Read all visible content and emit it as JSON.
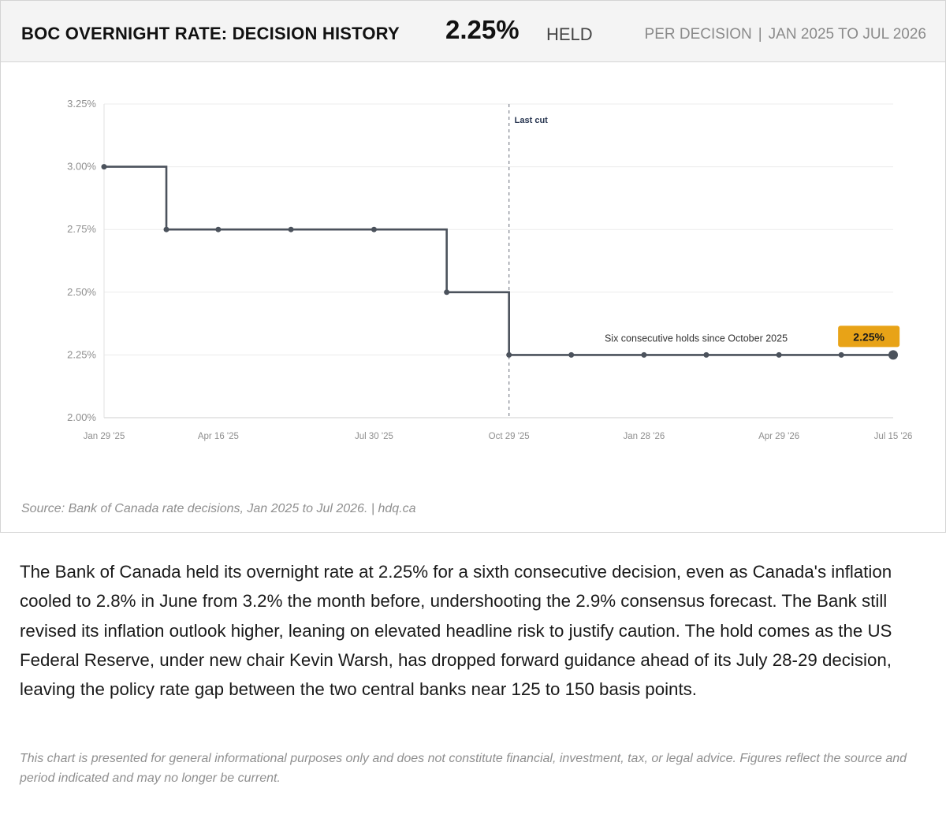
{
  "header": {
    "title": "BOC OVERNIGHT RATE: DECISION HISTORY",
    "value": "2.25%",
    "status": "HELD",
    "frequency": "PER DECISION",
    "period": "JAN 2025 TO JUL 2026"
  },
  "chart_data": {
    "type": "line",
    "step": true,
    "x": [
      "2025-01-29",
      "2025-03-12",
      "2025-04-16",
      "2025-06-04",
      "2025-07-30",
      "2025-09-17",
      "2025-10-29",
      "2025-12-10",
      "2026-01-28",
      "2026-03-11",
      "2026-04-29",
      "2026-06-10",
      "2026-07-15"
    ],
    "series": [
      {
        "values": [
          3.0,
          2.75,
          2.75,
          2.75,
          2.75,
          2.5,
          2.25,
          2.25,
          2.25,
          2.25,
          2.25,
          2.25,
          2.25
        ]
      }
    ],
    "y_ticks": [
      "3.25%",
      "3.00%",
      "2.75%",
      "2.50%",
      "2.25%",
      "2.00%"
    ],
    "x_ticks": [
      "Jan 29 '25",
      "Apr 16 '25",
      "Jul 30 '25",
      "Oct 29 '25",
      "Jan 28 '26",
      "Apr 29 '26",
      "Jul 15 '26"
    ],
    "ylim": [
      2.0,
      3.25
    ],
    "grid": true,
    "annotations": {
      "vline_label": "Last cut",
      "vline_at": "2025-10-29",
      "hold_note": "Six consecutive holds since October 2025",
      "end_label": "2.25%"
    },
    "colors": {
      "line": "#4b525c",
      "grid": "#ececec",
      "badge": "#e8a317",
      "vline": "#8a8f99"
    }
  },
  "source": "Source: Bank of Canada rate decisions, Jan 2025 to Jul 2026.  |  hdq.ca",
  "summary": "The Bank of Canada held its overnight rate at 2.25% for a sixth consecutive decision, even as Canada's inflation cooled to 2.8% in June from 3.2% the month before, undershooting the 2.9% consensus forecast. The Bank still revised its inflation outlook higher, leaning on elevated headline risk to justify caution. The hold comes as the US Federal Reserve, under new chair Kevin Warsh, has dropped forward guidance ahead of its July 28-29 decision, leaving the policy rate gap between the two central banks near 125 to 150 basis points.",
  "disclaimer": "This chart is presented for general informational purposes only and does not constitute financial, investment, tax, or legal advice. Figures reflect the source and period indicated and may no longer be current."
}
